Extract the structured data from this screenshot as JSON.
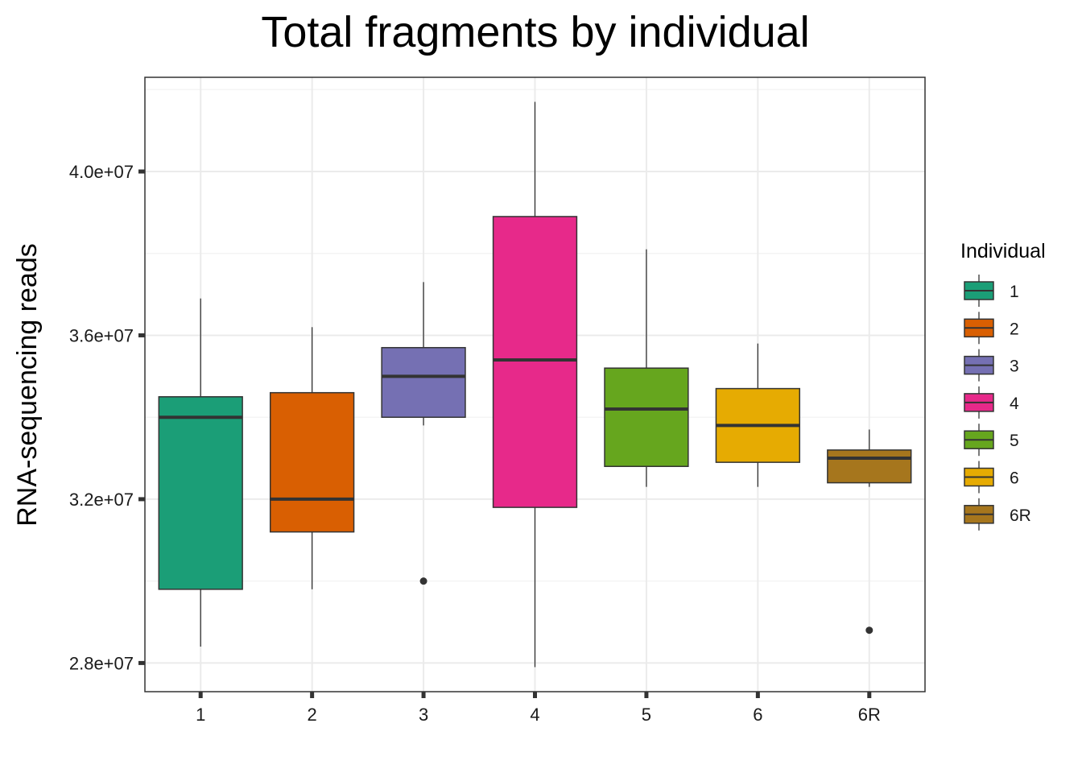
{
  "chart_data": {
    "type": "boxplot",
    "title": "Total fragments by individual",
    "xlabel": "",
    "ylabel": "RNA-sequencing reads",
    "ylim": [
      27300000,
      42300000
    ],
    "y_ticks": [
      28000000,
      32000000,
      36000000,
      40000000
    ],
    "y_tick_labels": [
      "2.8e+07",
      "3.2e+07",
      "3.6e+07",
      "4.0e+07"
    ],
    "grid": true,
    "legend": {
      "title": "Individual",
      "position": "right"
    },
    "categories": [
      "1",
      "2",
      "3",
      "4",
      "5",
      "6",
      "6R"
    ],
    "boxes": [
      {
        "name": "1",
        "color": "#1B9E77",
        "whisker_low": 28400000,
        "q1": 29800000,
        "median": 34000000,
        "q3": 34500000,
        "whisker_high": 36900000,
        "outliers": []
      },
      {
        "name": "2",
        "color": "#D95F02",
        "whisker_low": 29800000,
        "q1": 31200000,
        "median": 32000000,
        "q3": 34600000,
        "whisker_high": 36200000,
        "outliers": []
      },
      {
        "name": "3",
        "color": "#7570B3",
        "whisker_low": 33800000,
        "q1": 34000000,
        "median": 35000000,
        "q3": 35700000,
        "whisker_high": 37300000,
        "outliers": [
          30000000
        ]
      },
      {
        "name": "4",
        "color": "#E7298A",
        "whisker_low": 27900000,
        "q1": 31800000,
        "median": 35400000,
        "q3": 38900000,
        "whisker_high": 41700000,
        "outliers": []
      },
      {
        "name": "5",
        "color": "#66A61E",
        "whisker_low": 32300000,
        "q1": 32800000,
        "median": 34200000,
        "q3": 35200000,
        "whisker_high": 38100000,
        "outliers": []
      },
      {
        "name": "6",
        "color": "#E6AB02",
        "whisker_low": 32300000,
        "q1": 32900000,
        "median": 33800000,
        "q3": 34700000,
        "whisker_high": 35800000,
        "outliers": []
      },
      {
        "name": "6R",
        "color": "#A6761D",
        "whisker_low": 32300000,
        "q1": 32400000,
        "median": 33000000,
        "q3": 33200000,
        "whisker_high": 33700000,
        "outliers": [
          28800000
        ]
      }
    ]
  }
}
